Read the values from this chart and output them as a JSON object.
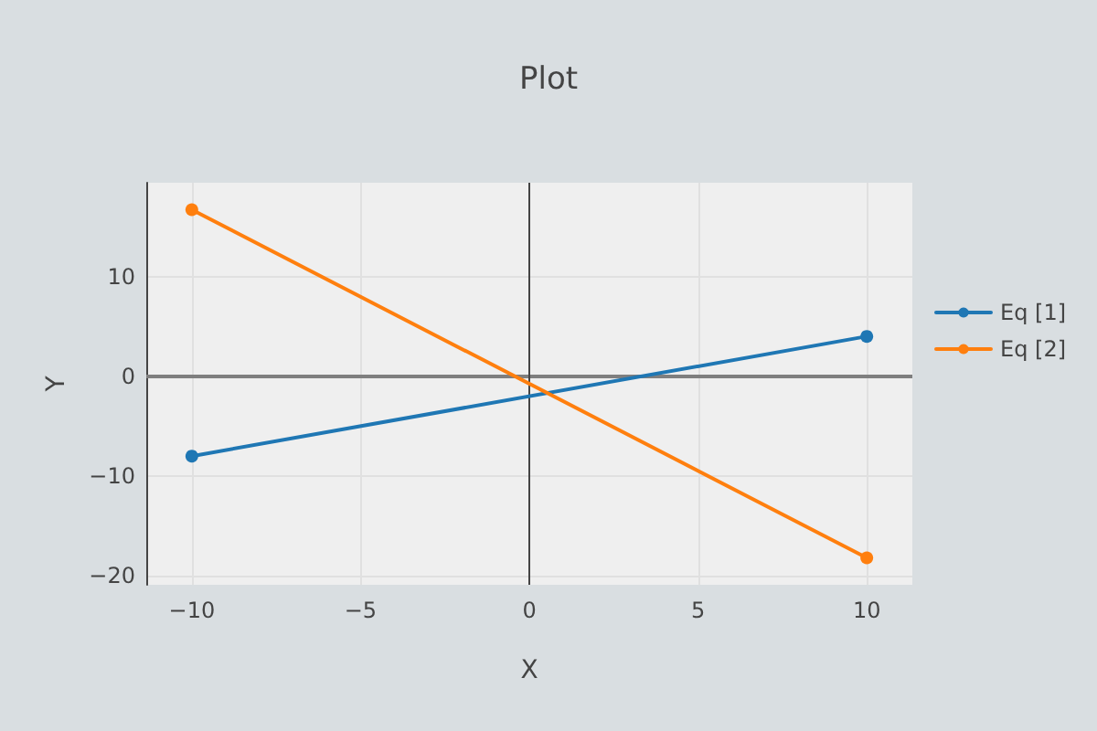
{
  "chart_data": {
    "type": "line",
    "title": "Plot",
    "xlabel": "X",
    "ylabel": "Y",
    "x": [
      -10,
      10
    ],
    "series": [
      {
        "name": "Eq [1]",
        "color": "#1f77b4",
        "values": [
          -8,
          4
        ]
      },
      {
        "name": "Eq [2]",
        "color": "#ff7f0e",
        "values": [
          16.7,
          -18.2
        ]
      }
    ],
    "xlim": [
      -11.35,
      11.35
    ],
    "ylim": [
      -20.9,
      19.4
    ],
    "xticks": [
      {
        "value": -10,
        "label": "−10"
      },
      {
        "value": -5,
        "label": "−5"
      },
      0,
      5,
      10
    ],
    "yticks": [
      {
        "value": -20,
        "label": "−20"
      },
      {
        "value": -10,
        "label": "−10"
      },
      0,
      10
    ],
    "ref_lines": [
      {
        "axis": "x",
        "value": 0,
        "color": "#444444"
      },
      {
        "axis": "y",
        "value": 0,
        "color": "#7f7f7f"
      }
    ],
    "grid": true,
    "legend": "top right",
    "marker": "circle",
    "line_style": "solid"
  }
}
